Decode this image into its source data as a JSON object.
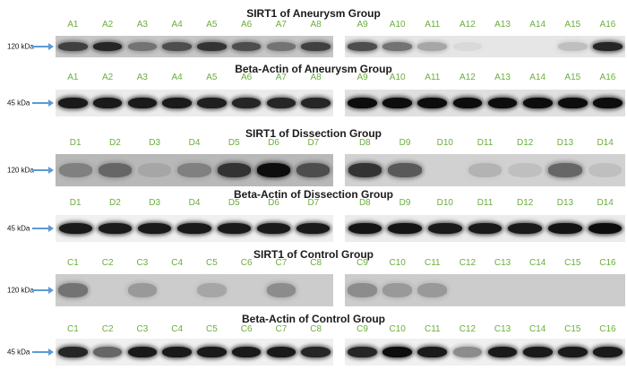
{
  "colors": {
    "lane_label": "#6aae3a",
    "arrow": "#5b9bd5",
    "title": "#1a1a1a"
  },
  "panels": [
    {
      "title": "SIRT1 of Aneurysm Group",
      "kda": "120 kDa",
      "left": {
        "labels": [
          "A1",
          "A2",
          "A3",
          "A4",
          "A5",
          "A6",
          "A7",
          "A8"
        ],
        "intensity": [
          0.75,
          0.85,
          0.55,
          0.7,
          0.8,
          0.7,
          0.55,
          0.75
        ],
        "background": 0.22
      },
      "right": {
        "labels": [
          "A9",
          "A10",
          "A11",
          "A12",
          "A13",
          "A14",
          "A15",
          "A16"
        ],
        "intensity": [
          0.7,
          0.55,
          0.35,
          0.15,
          0.1,
          0.05,
          0.25,
          0.85
        ],
        "background": 0.1
      }
    },
    {
      "title": "Beta-Actin of Aneurysm Group",
      "kda": "45 kDa",
      "left": {
        "labels": [
          "A1",
          "A2",
          "A3",
          "A4",
          "A5",
          "A6",
          "A7",
          "A8"
        ],
        "intensity": [
          0.9,
          0.9,
          0.9,
          0.9,
          0.88,
          0.85,
          0.85,
          0.85
        ],
        "background": 0.08
      },
      "right": {
        "labels": [
          "A9",
          "A10",
          "A11",
          "A12",
          "A13",
          "A14",
          "A15",
          "A16"
        ],
        "intensity": [
          0.95,
          0.95,
          0.95,
          0.95,
          0.95,
          0.95,
          0.95,
          0.95
        ],
        "background": 0.12
      }
    },
    {
      "title": "SIRT1 of Dissection Group",
      "kda": "120 kDa",
      "left": {
        "labels": [
          "D1",
          "D2",
          "D3",
          "D4",
          "D5",
          "D6",
          "D7"
        ],
        "intensity": [
          0.5,
          0.6,
          0.35,
          0.5,
          0.8,
          0.95,
          0.7
        ],
        "background": 0.28
      },
      "right": {
        "labels": [
          "D8",
          "D9",
          "D10",
          "D11",
          "D12",
          "D13",
          "D14"
        ],
        "intensity": [
          0.8,
          0.65,
          0.1,
          0.3,
          0.25,
          0.6,
          0.25
        ],
        "background": 0.18
      }
    },
    {
      "title": "Beta-Actin of Dissection Group",
      "kda": "45 kDa",
      "left": {
        "labels": [
          "D1",
          "D2",
          "D3",
          "D4",
          "D5",
          "D6",
          "D7"
        ],
        "intensity": [
          0.9,
          0.9,
          0.9,
          0.9,
          0.9,
          0.9,
          0.9
        ],
        "background": 0.06
      },
      "right": {
        "labels": [
          "D8",
          "D9",
          "D10",
          "D11",
          "D12",
          "D13",
          "D14"
        ],
        "intensity": [
          0.92,
          0.92,
          0.9,
          0.9,
          0.9,
          0.92,
          0.95
        ],
        "background": 0.08
      }
    },
    {
      "title": "SIRT1 of Control Group",
      "kda": "120 kDa",
      "left": {
        "labels": [
          "C1",
          "C2",
          "C3",
          "C4",
          "C5",
          "C6",
          "C7",
          "C8"
        ],
        "intensity": [
          0.55,
          0.1,
          0.4,
          0.15,
          0.35,
          0.1,
          0.45,
          0.15
        ],
        "background": 0.2
      },
      "right": {
        "labels": [
          "C9",
          "C10",
          "C11",
          "C12",
          "C13",
          "C14",
          "C15",
          "C16"
        ],
        "intensity": [
          0.45,
          0.4,
          0.4,
          0.1,
          0.05,
          0.05,
          0.05,
          0.05
        ],
        "background": 0.2
      }
    },
    {
      "title": "Beta-Actin of Control Group",
      "kda": "45 kDa",
      "left": {
        "labels": [
          "C1",
          "C2",
          "C3",
          "C4",
          "C5",
          "C6",
          "C7",
          "C8"
        ],
        "intensity": [
          0.85,
          0.6,
          0.9,
          0.9,
          0.9,
          0.9,
          0.9,
          0.85
        ],
        "background": 0.06
      },
      "right": {
        "labels": [
          "C9",
          "C10",
          "C11",
          "C12",
          "C13",
          "C14",
          "C15",
          "C16"
        ],
        "intensity": [
          0.85,
          0.95,
          0.9,
          0.45,
          0.9,
          0.9,
          0.9,
          0.9
        ],
        "background": 0.06
      }
    }
  ]
}
